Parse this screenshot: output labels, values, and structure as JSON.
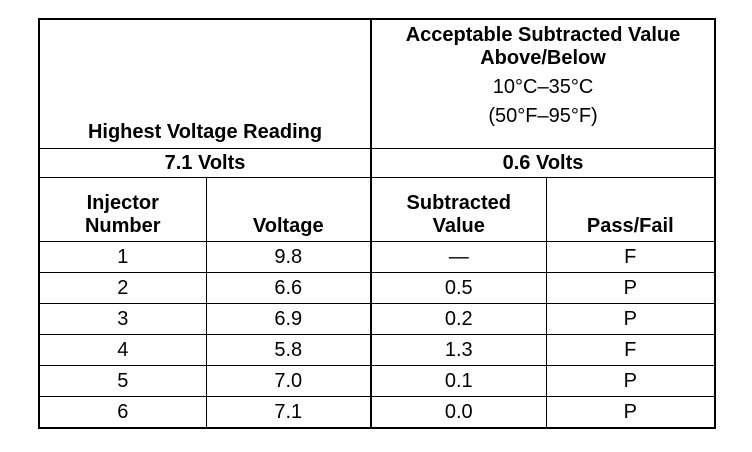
{
  "header": {
    "left": "Highest Voltage Reading",
    "right": {
      "title": "Acceptable Subtracted Value Above/Below",
      "range_c": "10°C–35°C",
      "range_f": "(50°F–95°F)"
    }
  },
  "summary": {
    "highest": "7.1 Volts",
    "acceptable": "0.6 Volts"
  },
  "table": {
    "columns": [
      "Injector Number",
      "Voltage",
      "Subtracted Value",
      "Pass/Fail"
    ],
    "rows": [
      [
        "1",
        "9.8",
        "—",
        "F"
      ],
      [
        "2",
        "6.6",
        "0.5",
        "P"
      ],
      [
        "3",
        "6.9",
        "0.2",
        "P"
      ],
      [
        "4",
        "5.8",
        "1.3",
        "F"
      ],
      [
        "5",
        "7.0",
        "0.1",
        "P"
      ],
      [
        "6",
        "7.1",
        "0.0",
        "P"
      ]
    ]
  }
}
